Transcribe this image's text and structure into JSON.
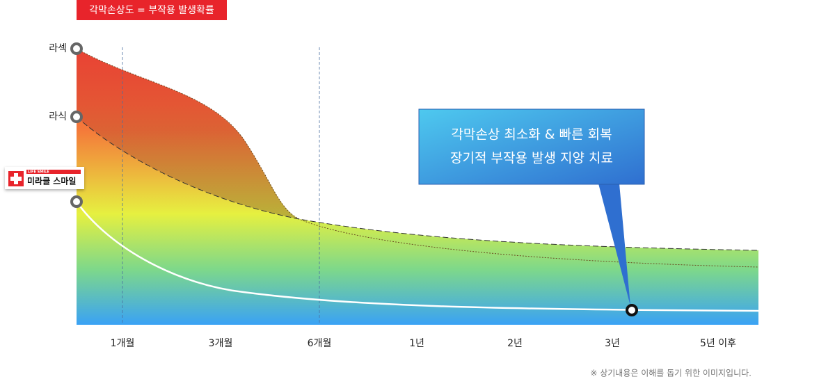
{
  "header": {
    "label": "각막손상도 = 부작용 발생확률"
  },
  "procedures": {
    "lasek": "라섹",
    "lasik": "라식",
    "smile": {
      "brand": "LIFE SMILE",
      "name": "미라클 스마일"
    }
  },
  "callout": {
    "lines": [
      "각막손상 최소화 & 빠른 회복",
      "장기적 부작용 발생 지양 치료"
    ]
  },
  "timeline": [
    "1개월",
    "3개월",
    "6개월",
    "1년",
    "2년",
    "3년",
    "5년 이후"
  ],
  "footnote": "※ 상기내용은 이해를 돕기 위한 이미지입니다."
}
